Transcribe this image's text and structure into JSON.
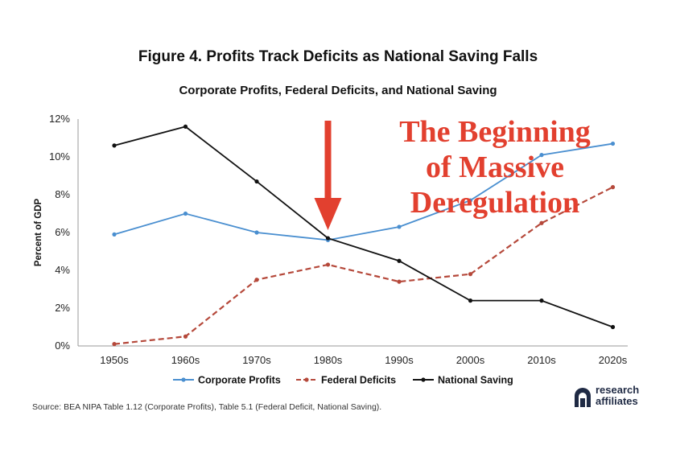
{
  "figure": {
    "title": "Figure 4. Profits Track Deficits as National Saving Falls",
    "subtitle": "Corporate Profits, Federal Deficits, and National Saving",
    "source": "Source: BEA NIPA Table 1.12 (Corporate Profits), Table 5.1 (Federal Deficit, National Saving).",
    "logo_line1": "research",
    "logo_line2": "affiliates"
  },
  "annotation": {
    "line1": "The Beginning",
    "line2": "of Massive",
    "line3": "Deregulation",
    "color": "#e2402f",
    "arrow_target": "1980s"
  },
  "chart_data": {
    "type": "line",
    "categories": [
      "1950s",
      "1960s",
      "1970s",
      "1980s",
      "1990s",
      "2000s",
      "2010s",
      "2020s"
    ],
    "ylabel": "Percent of GDP",
    "ylim": [
      0,
      12
    ],
    "yticks": [
      "0%",
      "2%",
      "4%",
      "6%",
      "8%",
      "10%",
      "12%"
    ],
    "grid": false,
    "legend_position": "bottom",
    "series": [
      {
        "name": "Corporate Profits",
        "color": "#4a8fd0",
        "style": "solid",
        "values": [
          5.9,
          7.0,
          6.0,
          5.6,
          6.3,
          7.7,
          10.1,
          10.7
        ]
      },
      {
        "name": "Federal Deficits",
        "color": "#b5483a",
        "style": "dashed",
        "values": [
          0.1,
          0.5,
          3.5,
          4.3,
          3.4,
          3.8,
          6.5,
          8.4
        ]
      },
      {
        "name": "National Saving",
        "color": "#111111",
        "style": "solid",
        "values": [
          10.6,
          11.6,
          8.7,
          5.7,
          4.5,
          2.4,
          2.4,
          1.0
        ]
      }
    ]
  }
}
